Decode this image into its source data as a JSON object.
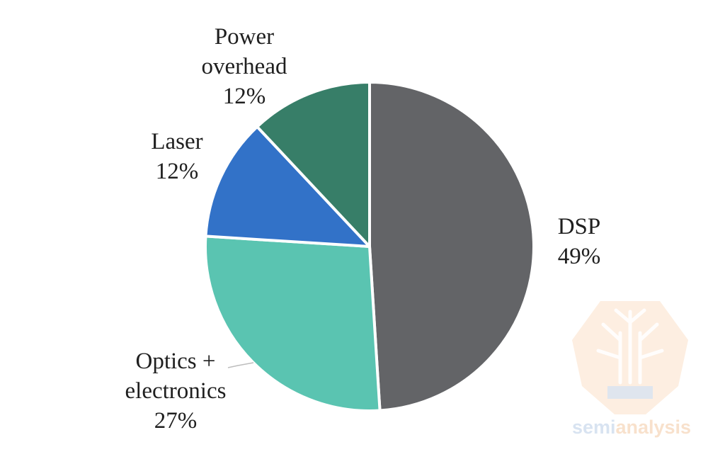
{
  "chart_data": {
    "type": "pie",
    "title": "",
    "slices": [
      {
        "label_lines": [
          "DSP"
        ],
        "percent_label": "49%",
        "value": 49,
        "color": "#636467"
      },
      {
        "label_lines": [
          "Optics +",
          "electronics"
        ],
        "percent_label": "27%",
        "value": 27,
        "color": "#5ac4b1"
      },
      {
        "label_lines": [
          "Laser"
        ],
        "percent_label": "12%",
        "value": 12,
        "color": "#3272c8"
      },
      {
        "label_lines": [
          "Power",
          "overhead"
        ],
        "percent_label": "12%",
        "value": 12,
        "color": "#377e68"
      }
    ],
    "start_angle_deg": 0,
    "direction": "clockwise"
  },
  "watermark": {
    "text_part1": "semi",
    "text_part2": "analysis",
    "color_part1": "#b9cde6",
    "color_part2": "#f3c9a3",
    "icon_name": "tree-circuit-logo-icon"
  }
}
